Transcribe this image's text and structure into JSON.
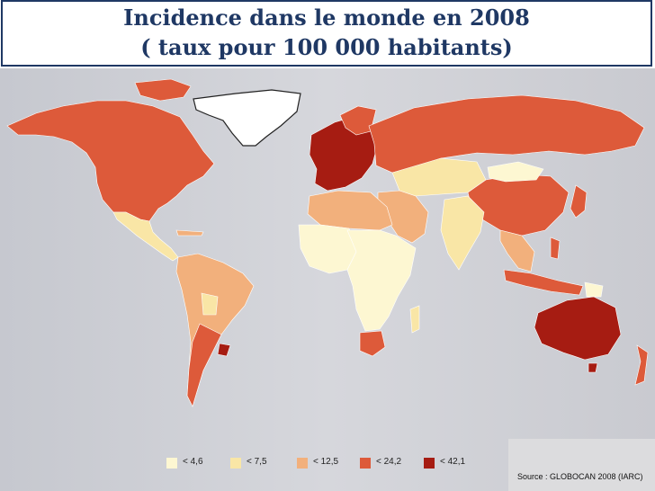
{
  "title": {
    "line1": "Incidence dans le monde en 2008",
    "line2": "( taux pour 100 000 habitants)"
  },
  "colors": {
    "frame": "#1f3864",
    "ocean": "#cfd0d6",
    "class1": "#fdf7d2",
    "class2": "#f9e6a6",
    "class3": "#f2b07c",
    "class4": "#dd5a3a",
    "class5": "#a61c12"
  },
  "legend": [
    {
      "label": "< 4,6",
      "color": "#fdf7d2"
    },
    {
      "label": "< 7,5",
      "color": "#f9e6a6"
    },
    {
      "label": "< 12,5",
      "color": "#f2b07c"
    },
    {
      "label": "< 24,2",
      "color": "#dd5a3a"
    },
    {
      "label": "< 42,1",
      "color": "#a61c12"
    }
  ],
  "source": "Source : GLOBOCAN 2008 (IARC)"
}
